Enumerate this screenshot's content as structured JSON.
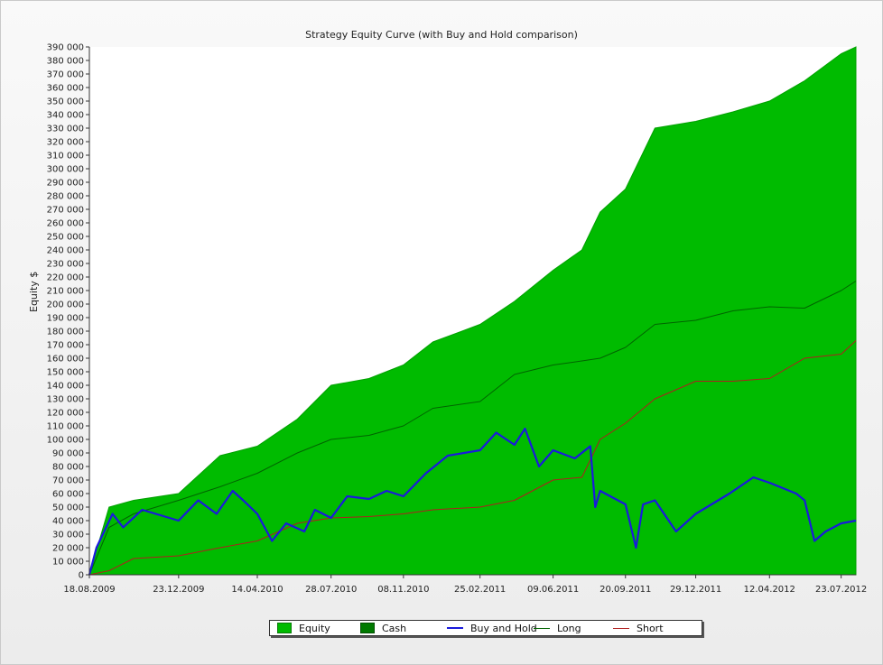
{
  "chart_data": {
    "type": "area",
    "title": "Strategy Equity Curve (with Buy and Hold comparison)",
    "xlabel": "",
    "ylabel": "Equity $",
    "ylim": [
      0,
      390000
    ],
    "y_ticks": [
      0,
      10000,
      20000,
      30000,
      40000,
      50000,
      60000,
      70000,
      80000,
      90000,
      100000,
      110000,
      120000,
      130000,
      140000,
      150000,
      160000,
      170000,
      180000,
      190000,
      200000,
      210000,
      220000,
      230000,
      240000,
      250000,
      260000,
      270000,
      280000,
      290000,
      300000,
      310000,
      320000,
      330000,
      340000,
      350000,
      360000,
      370000,
      380000,
      390000
    ],
    "y_tick_labels": [
      "0",
      "10 000",
      "20 000",
      "30 000",
      "40 000",
      "50 000",
      "60 000",
      "70 000",
      "80 000",
      "90 000",
      "100 000",
      "110 000",
      "120 000",
      "130 000",
      "140 000",
      "150 000",
      "160 000",
      "170 000",
      "180 000",
      "190 000",
      "200 000",
      "210 000",
      "220 000",
      "230 000",
      "240 000",
      "250 000",
      "260 000",
      "270 000",
      "280 000",
      "290 000",
      "300 000",
      "310 000",
      "320 000",
      "330 000",
      "340 000",
      "350 000",
      "360 000",
      "370 000",
      "380 000",
      "390 000"
    ],
    "x_tick_labels": [
      "18.08.2009",
      "23.12.2009",
      "14.04.2010",
      "28.07.2010",
      "08.11.2010",
      "25.02.2011",
      "09.06.2011",
      "20.09.2011",
      "29.12.2011",
      "12.04.2012",
      "23.07.2012"
    ],
    "x_range": [
      "18.08.2009",
      "13.08.2012"
    ],
    "legend_position": "bottom",
    "grid": false,
    "colors": {
      "equity": "#00bb00",
      "cash": "#007a00",
      "buy_and_hold": "#1a1adc",
      "long": "#006400",
      "short": "#b01e1e"
    },
    "series": [
      {
        "name": "Equity",
        "kind": "area",
        "x": [
          "18.08.2009",
          "15.09.2009",
          "20.10.2009",
          "23.12.2009",
          "20.02.2010",
          "14.04.2010",
          "10.06.2010",
          "28.07.2010",
          "20.09.2010",
          "08.11.2010",
          "20.12.2010",
          "25.02.2011",
          "15.04.2011",
          "09.06.2011",
          "20.07.2011",
          "15.08.2011",
          "20.09.2011",
          "01.11.2011",
          "29.12.2011",
          "20.02.2012",
          "12.04.2012",
          "01.06.2012",
          "23.07.2012",
          "13.08.2012"
        ],
        "values": [
          0,
          50000,
          55000,
          60000,
          88000,
          95000,
          115000,
          140000,
          145000,
          155000,
          172000,
          185000,
          202000,
          225000,
          240000,
          268000,
          285000,
          330000,
          335000,
          342000,
          350000,
          365000,
          385000,
          390000
        ]
      },
      {
        "name": "Long",
        "kind": "line",
        "x": [
          "18.08.2009",
          "15.09.2009",
          "20.10.2009",
          "23.12.2009",
          "20.02.2010",
          "14.04.2010",
          "10.06.2010",
          "28.07.2010",
          "20.09.2010",
          "08.11.2010",
          "20.12.2010",
          "25.02.2011",
          "15.04.2011",
          "09.06.2011",
          "20.07.2011",
          "15.08.2011",
          "20.09.2011",
          "01.11.2011",
          "29.12.2011",
          "20.02.2012",
          "12.04.2012",
          "01.06.2012",
          "23.07.2012",
          "13.08.2012"
        ],
        "values": [
          0,
          35000,
          45000,
          55000,
          65000,
          75000,
          90000,
          100000,
          103000,
          110000,
          123000,
          128000,
          148000,
          155000,
          158000,
          160000,
          168000,
          185000,
          188000,
          195000,
          198000,
          197000,
          210000,
          217000
        ]
      },
      {
        "name": "Short",
        "kind": "line",
        "x": [
          "18.08.2009",
          "15.09.2009",
          "20.10.2009",
          "23.12.2009",
          "20.02.2010",
          "14.04.2010",
          "10.06.2010",
          "28.07.2010",
          "20.09.2010",
          "08.11.2010",
          "20.12.2010",
          "25.02.2011",
          "15.04.2011",
          "09.06.2011",
          "20.07.2011",
          "15.08.2011",
          "20.09.2011",
          "01.11.2011",
          "29.12.2011",
          "20.02.2012",
          "12.04.2012",
          "01.06.2012",
          "23.07.2012",
          "13.08.2012"
        ],
        "values": [
          0,
          3000,
          12000,
          14000,
          20000,
          25000,
          38000,
          42000,
          43000,
          45000,
          48000,
          50000,
          55000,
          70000,
          72000,
          100000,
          112000,
          130000,
          143000,
          143000,
          145000,
          160000,
          163000,
          173000
        ]
      },
      {
        "name": "Buy and Hold",
        "kind": "line",
        "x": [
          "18.08.2009",
          "28.08.2009",
          "20.09.2009",
          "05.10.2009",
          "01.11.2009",
          "23.12.2009",
          "20.01.2010",
          "15.02.2010",
          "10.03.2010",
          "25.03.2010",
          "14.04.2010",
          "05.05.2010",
          "25.05.2010",
          "20.06.2010",
          "05.07.2010",
          "28.07.2010",
          "20.08.2010",
          "20.09.2010",
          "15.10.2010",
          "08.11.2010",
          "10.12.2010",
          "10.01.2011",
          "25.02.2011",
          "20.03.2011",
          "15.04.2011",
          "30.04.2011",
          "20.05.2011",
          "09.06.2011",
          "10.07.2011",
          "01.08.2011",
          "08.08.2011",
          "15.08.2011",
          "20.09.2011",
          "05.10.2011",
          "15.10.2011",
          "01.11.2011",
          "01.12.2011",
          "29.12.2011",
          "15.02.2012",
          "20.03.2012",
          "12.04.2012",
          "20.05.2012",
          "01.06.2012",
          "15.06.2012",
          "01.07.2012",
          "23.07.2012",
          "13.08.2012"
        ],
        "values": [
          0,
          20000,
          45000,
          35000,
          48000,
          40000,
          55000,
          45000,
          62000,
          55000,
          45000,
          25000,
          38000,
          32000,
          48000,
          42000,
          58000,
          56000,
          62000,
          58000,
          75000,
          88000,
          92000,
          105000,
          96000,
          108000,
          80000,
          92000,
          86000,
          95000,
          50000,
          62000,
          52000,
          20000,
          52000,
          55000,
          32000,
          45000,
          60000,
          72000,
          68000,
          60000,
          55000,
          25000,
          32000,
          38000,
          40000
        ]
      }
    ]
  },
  "legend": {
    "items": [
      {
        "label": "Equity",
        "color": "#00bb00"
      },
      {
        "label": "Cash",
        "color": "#007a00"
      },
      {
        "label": "Buy and Hold",
        "color": "#1a1adc"
      },
      {
        "label": "Long",
        "color": "#006400"
      },
      {
        "label": "Short",
        "color": "#b01e1e"
      }
    ]
  }
}
